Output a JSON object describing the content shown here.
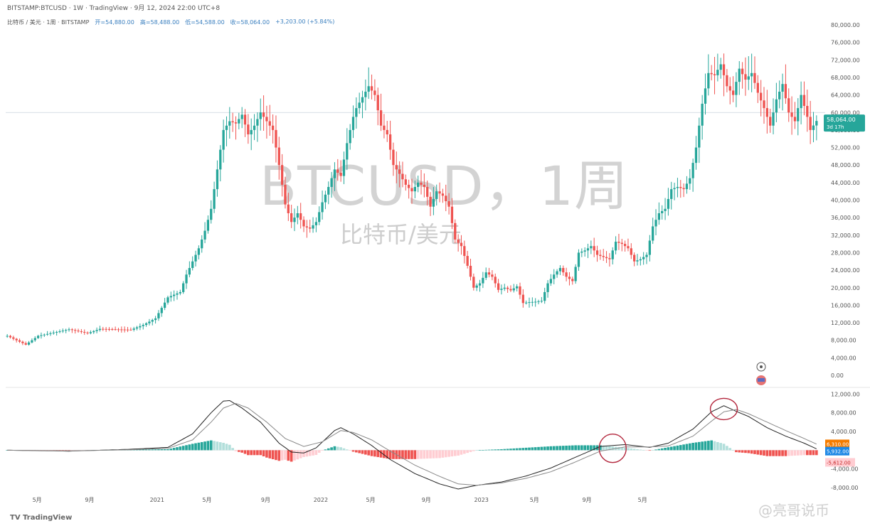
{
  "header": {
    "line1": "BITSTAMP:BTCUSD · 1W · TradingView · 9月 12, 2024 22:00 UTC+8",
    "symbol": "比特币 / 美元 · 1周 · BITSTAMP",
    "open": "开=54,880.00",
    "high": "高=58,488.00",
    "low": "低=54,588.00",
    "close": "收=58,064.00",
    "change": "+3,203.00 (+5.84%)"
  },
  "watermark": {
    "title": "BTCUSD，1周",
    "subtitle": "比特币/美元"
  },
  "footer": {
    "logo": "TV TradingView",
    "watermark": "@亮哥说币"
  },
  "price_tags": {
    "last": "58,064.00",
    "countdown": "3d 17h",
    "macd_a": "6,310.00",
    "macd_b": "5,932.00",
    "hist": "-5,612.00"
  },
  "colors": {
    "up": "#26a69a",
    "down": "#ef5350",
    "macd": "#222222",
    "signal": "#888888",
    "hist_up": "#26a69a",
    "hist_up_fade": "#b2dfdb",
    "hist_down": "#ef5350",
    "hist_down_fade": "#ffcdd2",
    "annotation": "#b3263c"
  },
  "chart_data": [
    {
      "type": "candlestick",
      "title": "BTCUSD，1周",
      "subtitle": "比特币/美元",
      "y_ticks": [
        "80,000.00",
        "76,000.00",
        "72,000.00",
        "68,000.00",
        "64,000.00",
        "60,000.00",
        "56,000.00",
        "52,000.00",
        "48,000.00",
        "44,000.00",
        "40,000.00",
        "36,000.00",
        "32,000.00",
        "28,000.00",
        "24,000.00",
        "20,000.00",
        "16,000.00",
        "12,000.00",
        "8,000.00",
        "4,000.00",
        "0.00"
      ],
      "ylim": [
        0,
        80000
      ],
      "x_ticks": [
        "5月",
        "9月",
        "2021",
        "5月",
        "9月",
        "2022",
        "5月",
        "9月",
        "2023",
        "5月",
        "9月",
        "5月"
      ],
      "last_price": 58064,
      "ref_price": 60000,
      "series": {
        "name": "BTCUSD",
        "anchors": [
          [
            0,
            9000
          ],
          [
            6,
            7000
          ],
          [
            10,
            9000
          ],
          [
            20,
            10500
          ],
          [
            26,
            9600
          ],
          [
            30,
            10600
          ],
          [
            40,
            10400
          ],
          [
            44,
            11500
          ],
          [
            48,
            13000
          ],
          [
            52,
            17800
          ],
          [
            56,
            19000
          ],
          [
            58,
            23000
          ],
          [
            62,
            29000
          ],
          [
            64,
            33000
          ],
          [
            66,
            38000
          ],
          [
            68,
            47000
          ],
          [
            70,
            56000
          ],
          [
            72,
            58000
          ],
          [
            74,
            57500
          ],
          [
            76,
            59500
          ],
          [
            78,
            55000
          ],
          [
            80,
            57000
          ],
          [
            82,
            60000
          ],
          [
            84,
            58000
          ],
          [
            86,
            56000
          ],
          [
            88,
            48000
          ],
          [
            90,
            39000
          ],
          [
            92,
            35000
          ],
          [
            94,
            37000
          ],
          [
            96,
            34000
          ],
          [
            98,
            33500
          ],
          [
            100,
            35000
          ],
          [
            102,
            39500
          ],
          [
            104,
            43000
          ],
          [
            106,
            47000
          ],
          [
            108,
            45500
          ],
          [
            110,
            53000
          ],
          [
            112,
            59000
          ],
          [
            113,
            61000
          ],
          [
            115,
            63500
          ],
          [
            117,
            66000
          ],
          [
            119,
            64000
          ],
          [
            121,
            57000
          ],
          [
            123,
            55000
          ],
          [
            125,
            48000
          ],
          [
            127,
            46000
          ],
          [
            129,
            43500
          ],
          [
            131,
            42000
          ],
          [
            133,
            44000
          ],
          [
            135,
            43000
          ],
          [
            137,
            38500
          ],
          [
            139,
            42000
          ],
          [
            141,
            41000
          ],
          [
            143,
            38500
          ],
          [
            145,
            31000
          ],
          [
            147,
            29500
          ],
          [
            149,
            25000
          ],
          [
            151,
            20000
          ],
          [
            153,
            21000
          ],
          [
            155,
            23500
          ],
          [
            157,
            22500
          ],
          [
            159,
            19500
          ],
          [
            161,
            20000
          ],
          [
            163,
            19400
          ],
          [
            165,
            20300
          ],
          [
            167,
            16500
          ],
          [
            169,
            16700
          ],
          [
            171,
            16800
          ],
          [
            173,
            17000
          ],
          [
            175,
            21000
          ],
          [
            177,
            23000
          ],
          [
            179,
            24500
          ],
          [
            181,
            22500
          ],
          [
            183,
            21500
          ],
          [
            185,
            28000
          ],
          [
            187,
            28500
          ],
          [
            189,
            29500
          ],
          [
            191,
            27500
          ],
          [
            193,
            27000
          ],
          [
            195,
            26500
          ],
          [
            197,
            30500
          ],
          [
            199,
            30000
          ],
          [
            201,
            29000
          ],
          [
            203,
            26000
          ],
          [
            205,
            26500
          ],
          [
            207,
            27500
          ],
          [
            209,
            34000
          ],
          [
            211,
            37000
          ],
          [
            213,
            38000
          ],
          [
            215,
            42500
          ],
          [
            217,
            43000
          ],
          [
            219,
            42500
          ],
          [
            221,
            45000
          ],
          [
            223,
            52000
          ],
          [
            225,
            62000
          ],
          [
            227,
            69000
          ],
          [
            229,
            68500
          ],
          [
            231,
            71000
          ],
          [
            233,
            66000
          ],
          [
            235,
            64000
          ],
          [
            237,
            70000
          ],
          [
            239,
            67500
          ],
          [
            241,
            69000
          ],
          [
            243,
            64500
          ],
          [
            245,
            61000
          ],
          [
            247,
            57000
          ],
          [
            249,
            63000
          ],
          [
            251,
            66500
          ],
          [
            253,
            60000
          ],
          [
            255,
            58000
          ],
          [
            257,
            64000
          ],
          [
            259,
            59000
          ],
          [
            260,
            56000
          ],
          [
            262,
            58064
          ]
        ],
        "count": 263
      }
    },
    {
      "type": "line",
      "title": "",
      "y_ticks": [
        "12,000.00",
        "8,000.00",
        "4,000.00",
        "0.00",
        "-4,000.00",
        "-8,000.00"
      ],
      "ylim": [
        -8600,
        12200
      ],
      "series": [
        {
          "name": "MACD",
          "anchors": [
            [
              0,
              0
            ],
            [
              20,
              -200
            ],
            [
              40,
              200
            ],
            [
              52,
              600
            ],
            [
              60,
              3500
            ],
            [
              66,
              8000
            ],
            [
              70,
              10500
            ],
            [
              72,
              10600
            ],
            [
              76,
              9000
            ],
            [
              82,
              6000
            ],
            [
              88,
              1500
            ],
            [
              92,
              -400
            ],
            [
              96,
              -600
            ],
            [
              100,
              500
            ],
            [
              106,
              4200
            ],
            [
              108,
              4800
            ],
            [
              112,
              3500
            ],
            [
              118,
              1000
            ],
            [
              124,
              -2000
            ],
            [
              132,
              -5000
            ],
            [
              140,
              -7200
            ],
            [
              146,
              -8300
            ],
            [
              152,
              -7500
            ],
            [
              160,
              -6800
            ],
            [
              168,
              -5500
            ],
            [
              176,
              -3800
            ],
            [
              184,
              -1500
            ],
            [
              192,
              800
            ],
            [
              200,
              1200
            ],
            [
              208,
              600
            ],
            [
              214,
              1500
            ],
            [
              222,
              4500
            ],
            [
              228,
              8200
            ],
            [
              232,
              9500
            ],
            [
              236,
              8300
            ],
            [
              240,
              7200
            ],
            [
              246,
              4800
            ],
            [
              252,
              3000
            ],
            [
              258,
              1500
            ],
            [
              262,
              300
            ]
          ]
        },
        {
          "name": "Signal",
          "anchors": [
            [
              0,
              0
            ],
            [
              20,
              -150
            ],
            [
              40,
              100
            ],
            [
              52,
              400
            ],
            [
              60,
              2200
            ],
            [
              66,
              6000
            ],
            [
              70,
              9000
            ],
            [
              74,
              10000
            ],
            [
              78,
              9000
            ],
            [
              84,
              6000
            ],
            [
              90,
              2500
            ],
            [
              96,
              800
            ],
            [
              102,
              1800
            ],
            [
              108,
              4200
            ],
            [
              112,
              3800
            ],
            [
              118,
              2200
            ],
            [
              124,
              -200
            ],
            [
              132,
              -3200
            ],
            [
              140,
              -5600
            ],
            [
              146,
              -7200
            ],
            [
              152,
              -7500
            ],
            [
              160,
              -7000
            ],
            [
              168,
              -6000
            ],
            [
              176,
              -4600
            ],
            [
              184,
              -2500
            ],
            [
              192,
              -200
            ],
            [
              200,
              700
            ],
            [
              208,
              700
            ],
            [
              214,
              900
            ],
            [
              222,
              3000
            ],
            [
              228,
              6200
            ],
            [
              232,
              8200
            ],
            [
              236,
              8700
            ],
            [
              240,
              7800
            ],
            [
              246,
              6000
            ],
            [
              252,
              4200
            ],
            [
              258,
              2500
            ],
            [
              262,
              1300
            ]
          ]
        }
      ],
      "annotations": [
        "circle-cross-2023",
        "circle-top-2024"
      ]
    }
  ]
}
